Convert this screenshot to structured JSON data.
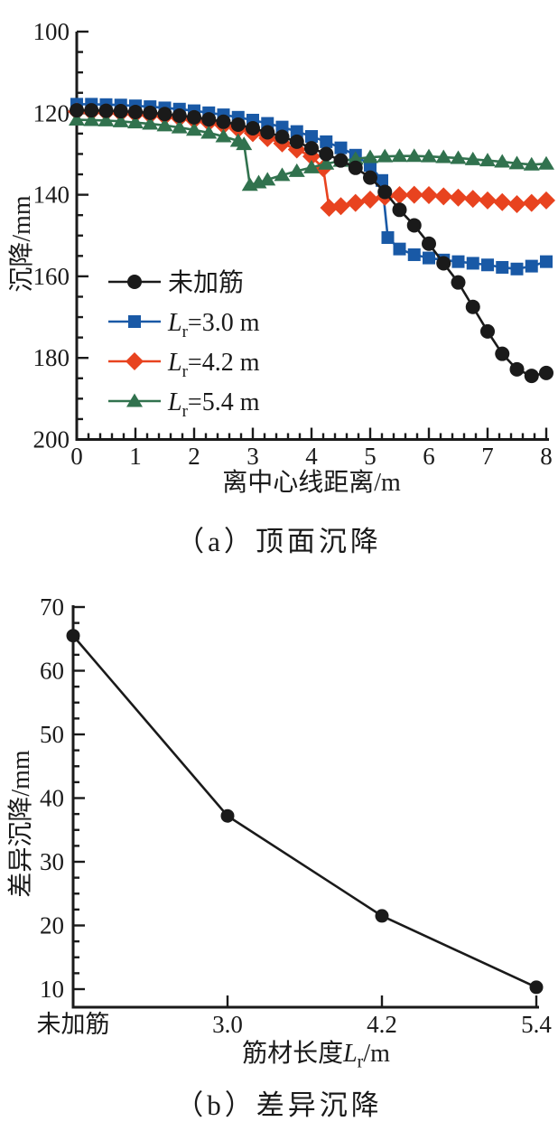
{
  "figure_background": "#ffffff",
  "text_color": "#1a1a1a",
  "chart_data": [
    {
      "id": "top-surface-settlement",
      "type": "line",
      "caption": "（a）顶面沉降",
      "xlabel": "离中心线距离/m",
      "ylabel": "沉降/mm",
      "xlim": [
        0,
        8
      ],
      "ylim": [
        100,
        200
      ],
      "y_axis_reversed": true,
      "x_ticks": [
        0,
        1,
        2,
        3,
        4,
        5,
        6,
        7,
        8
      ],
      "y_ticks": [
        100,
        120,
        140,
        160,
        180,
        200
      ],
      "x_minor_step": 0.2,
      "y_minor_step": 5,
      "grid": false,
      "legend_position": "inside lower-left",
      "series": [
        {
          "id": "unreinforced",
          "label": {
            "text": "未加筋"
          },
          "marker": "circle",
          "color": "#1a1a1a",
          "x": [
            0,
            0.25,
            0.5,
            0.75,
            1,
            1.25,
            1.5,
            1.75,
            2,
            2.25,
            2.5,
            2.75,
            3,
            3.25,
            3.5,
            3.75,
            4,
            4.25,
            4.5,
            4.75,
            5,
            5.25,
            5.5,
            5.75,
            6,
            6.25,
            6.5,
            6.75,
            7,
            7.25,
            7.5,
            7.75,
            8
          ],
          "y": [
            119.3,
            119.3,
            119.4,
            119.5,
            119.7,
            119.9,
            120.2,
            120.6,
            121.0,
            121.5,
            122.1,
            122.8,
            123.7,
            124.7,
            125.8,
            127.0,
            128.6,
            130.0,
            131.6,
            133.4,
            135.8,
            139.3,
            143.7,
            147.5,
            152.0,
            156.8,
            161.5,
            167.5,
            173.5,
            179.0,
            182.8,
            184.4,
            183.7
          ]
        },
        {
          "id": "lr-3.0-m",
          "label": {
            "var": "L",
            "sub": "r",
            "rest": "=3.0 m"
          },
          "marker": "square",
          "color": "#1959a6",
          "x": [
            0,
            0.25,
            0.5,
            0.75,
            1,
            1.25,
            1.5,
            1.75,
            2,
            2.25,
            2.5,
            2.75,
            3,
            3.25,
            3.5,
            3.75,
            4,
            4.25,
            4.5,
            4.75,
            5,
            5.2,
            5.3,
            5.5,
            5.75,
            6,
            6.25,
            6.5,
            6.75,
            7,
            7.25,
            7.5,
            7.75,
            8
          ],
          "y": [
            117.8,
            117.8,
            117.9,
            118.0,
            118.2,
            118.4,
            118.7,
            119.0,
            119.4,
            119.9,
            120.4,
            121.0,
            121.7,
            122.5,
            123.4,
            124.5,
            125.7,
            127.0,
            128.5,
            130.3,
            132.8,
            136.5,
            150.5,
            153.3,
            154.7,
            155.5,
            156.0,
            156.4,
            156.8,
            157.2,
            157.8,
            158.2,
            157.5,
            156.4
          ]
        },
        {
          "id": "lr-4.2-m",
          "label": {
            "var": "L",
            "sub": "r",
            "rest": "=4.2 m"
          },
          "marker": "diamond",
          "color": "#e8431f",
          "x": [
            0,
            0.25,
            0.5,
            0.75,
            1,
            1.25,
            1.5,
            1.75,
            2,
            2.25,
            2.5,
            2.75,
            3,
            3.25,
            3.5,
            3.75,
            4,
            4.2,
            4.3,
            4.5,
            4.75,
            5,
            5.25,
            5.5,
            5.75,
            6,
            6.25,
            6.5,
            6.75,
            7,
            7.25,
            7.5,
            7.75,
            8
          ],
          "y": [
            119.6,
            119.7,
            119.8,
            120.0,
            120.2,
            120.5,
            120.8,
            121.2,
            121.7,
            122.3,
            123.0,
            123.9,
            124.9,
            126.1,
            127.4,
            128.9,
            130.6,
            133.5,
            143.2,
            142.8,
            142.0,
            141.2,
            140.5,
            140.1,
            140.0,
            140.1,
            140.4,
            140.7,
            141.0,
            141.4,
            141.8,
            142.3,
            142.0,
            141.4
          ]
        },
        {
          "id": "lr-5.4-m",
          "label": {
            "var": "L",
            "sub": "r",
            "rest": "=5.4 m"
          },
          "marker": "triangle",
          "color": "#31724e",
          "x": [
            0,
            0.25,
            0.5,
            0.75,
            1,
            1.25,
            1.5,
            1.75,
            2,
            2.25,
            2.5,
            2.75,
            2.85,
            2.95,
            3.1,
            3.25,
            3.5,
            3.75,
            4,
            4.25,
            4.5,
            4.75,
            5,
            5.25,
            5.5,
            5.75,
            6,
            6.25,
            6.5,
            6.75,
            7,
            7.25,
            7.5,
            7.75,
            8
          ],
          "y": [
            121.6,
            121.7,
            121.8,
            122.0,
            122.3,
            122.6,
            123.0,
            123.5,
            124.1,
            124.8,
            125.7,
            126.8,
            127.6,
            137.6,
            137.0,
            136.3,
            135.2,
            134.2,
            133.3,
            132.4,
            131.7,
            131.2,
            130.8,
            130.6,
            130.5,
            130.5,
            130.6,
            130.8,
            131.0,
            131.3,
            131.6,
            131.9,
            132.3,
            132.6,
            132.4
          ]
        }
      ]
    },
    {
      "id": "differential-settlement",
      "type": "line",
      "caption": "（b）差异沉降",
      "xlabel_parts": {
        "prefix": "筋材长度",
        "var": "L",
        "sub": "r",
        "suffix": "/m"
      },
      "ylabel": "差异沉降/mm",
      "categories": [
        "未加筋",
        "3.0",
        "4.2",
        "5.4"
      ],
      "values": [
        65.5,
        37.2,
        21.5,
        10.3
      ],
      "ylim": [
        10,
        70
      ],
      "y_ticks": [
        10,
        20,
        30,
        40,
        50,
        60,
        70
      ],
      "y_minor_step": 2.5,
      "marker": "circle",
      "color": "#1a1a1a",
      "grid": false
    }
  ]
}
